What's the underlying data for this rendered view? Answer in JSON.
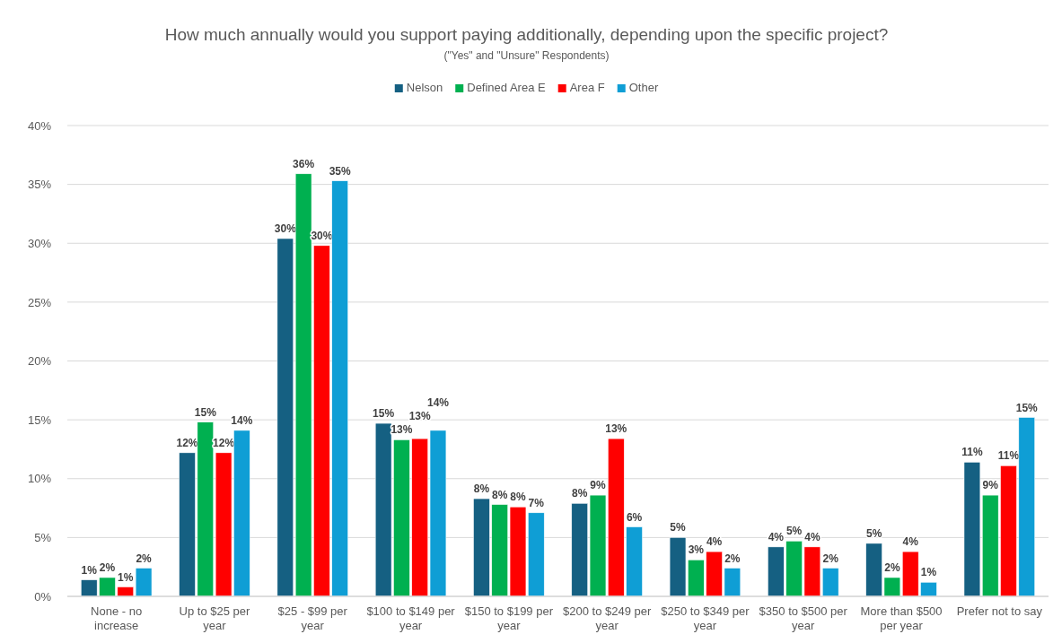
{
  "chart_data": {
    "type": "bar",
    "title": "How much annually would you support paying additionally, depending upon the specific project?",
    "subtitle": "(\"Yes\" and \"Unsure\" Respondents)",
    "categories": [
      "None - no increase",
      "Up to $25 per year",
      "$25 - $99 per year",
      "$100 to $149 per year",
      "$150 to $199 per year",
      "$200 to $249 per year",
      "$250 to $349 per year",
      "$350 to $500 per year",
      "More than $500 per year",
      "Prefer not to say"
    ],
    "series": [
      {
        "name": "Nelson",
        "color": "#156082",
        "values": [
          1.4,
          12.2,
          30.4,
          14.7,
          8.3,
          7.9,
          5.0,
          4.2,
          4.5,
          11.4
        ],
        "value_labels": [
          "1%",
          "12%",
          "30%",
          "15%",
          "8%",
          "8%",
          "5%",
          "4%",
          "5%",
          "11%"
        ]
      },
      {
        "name": "Defined Area E",
        "color": "#00b050",
        "values": [
          1.6,
          14.8,
          35.9,
          13.3,
          7.8,
          8.6,
          3.1,
          4.7,
          1.6,
          8.6
        ],
        "value_labels": [
          "2%",
          "15%",
          "36%",
          "13%",
          "8%",
          "9%",
          "3%",
          "5%",
          "2%",
          "9%"
        ]
      },
      {
        "name": "Area F",
        "color": "#ff0000",
        "values": [
          0.8,
          12.2,
          29.8,
          13.4,
          7.6,
          13.4,
          3.8,
          4.2,
          3.8,
          11.1
        ],
        "value_labels": [
          "1%",
          "12%",
          "30%",
          "13%",
          "8%",
          "13%",
          "4%",
          "4%",
          "4%",
          "11%"
        ]
      },
      {
        "name": "Other",
        "color": "#0f9ed5",
        "values": [
          2.4,
          14.1,
          35.3,
          14.1,
          7.1,
          5.9,
          2.4,
          2.4,
          1.2,
          15.2
        ],
        "value_labels": [
          "2%",
          "14%",
          "35%",
          "14%",
          "7%",
          "6%",
          "2%",
          "2%",
          "1%",
          "15%"
        ]
      }
    ],
    "ylim": [
      0,
      40
    ],
    "yticks": [
      {
        "value": 0,
        "label": "0%"
      },
      {
        "value": 5,
        "label": "5%"
      },
      {
        "value": 10,
        "label": "10%"
      },
      {
        "value": 15,
        "label": "15%"
      },
      {
        "value": 20,
        "label": "20%"
      },
      {
        "value": 25,
        "label": "25%"
      },
      {
        "value": 30,
        "label": "30%"
      },
      {
        "value": 35,
        "label": "35%"
      },
      {
        "value": 40,
        "label": "40%"
      }
    ],
    "grid": "y",
    "legend": "top"
  }
}
